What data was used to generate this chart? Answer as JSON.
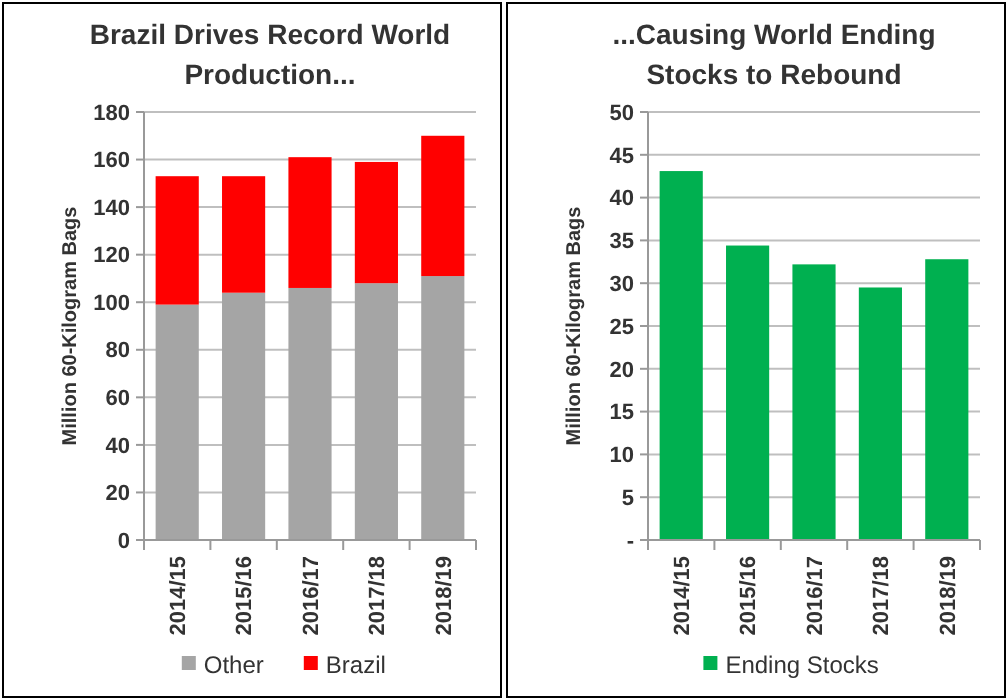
{
  "chart_data": [
    {
      "type": "bar",
      "title": "Brazil Drives Record World Production...",
      "ylabel": "Million 60-Kilogram Bags",
      "categories": [
        "2014/15",
        "2015/16",
        "2016/17",
        "2017/18",
        "2018/19"
      ],
      "stacked": true,
      "series": [
        {
          "name": "Other",
          "color": "#a5a5a5",
          "values": [
            99,
            104,
            106,
            108,
            111
          ]
        },
        {
          "name": "Brazil",
          "color": "#ff0000",
          "values": [
            54,
            49,
            55,
            51,
            59
          ]
        }
      ],
      "ylim": [
        0,
        180
      ],
      "yticks": [
        0,
        20,
        40,
        60,
        80,
        100,
        120,
        140,
        160,
        180
      ],
      "grid": "y",
      "legend": "bottom"
    },
    {
      "type": "bar",
      "title": "...Causing World Ending Stocks to Rebound",
      "ylabel": "Million 60-Kilogram Bags",
      "categories": [
        "2014/15",
        "2015/16",
        "2016/17",
        "2017/18",
        "2018/19"
      ],
      "series": [
        {
          "name": "Ending Stocks",
          "color": "#00b050",
          "values": [
            43.1,
            34.4,
            32.2,
            29.5,
            32.8
          ]
        }
      ],
      "ylim": [
        0,
        50
      ],
      "yticks": [
        {
          "value": 0,
          "label": "-"
        },
        5,
        10,
        15,
        20,
        25,
        30,
        35,
        40,
        45,
        50
      ],
      "grid": "y",
      "legend": "bottom"
    }
  ]
}
